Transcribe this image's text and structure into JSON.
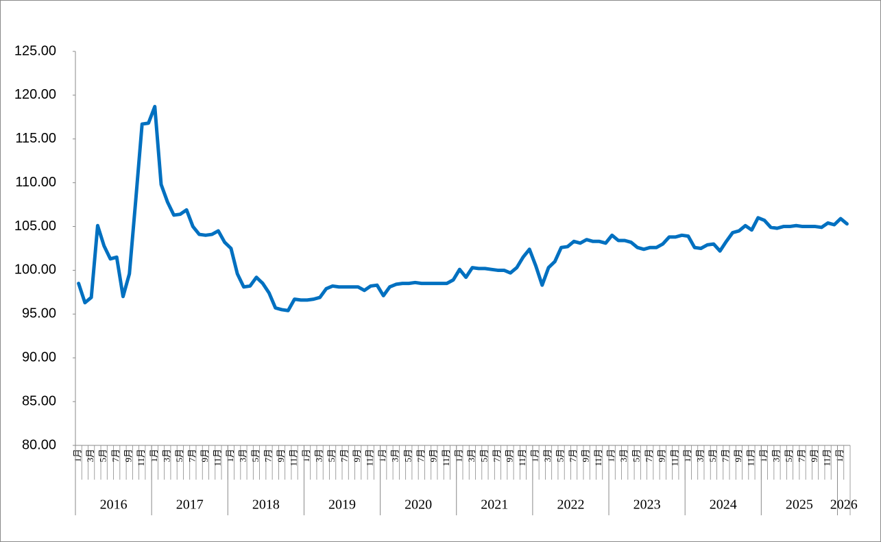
{
  "chart_data": {
    "type": "line",
    "categories": [
      "1月",
      null,
      "3月",
      null,
      "5月",
      null,
      "7月",
      null,
      "9月",
      null,
      "11月",
      null,
      "1月",
      null,
      "3月",
      null,
      "5月",
      null,
      "7月",
      null,
      "9月",
      null,
      "11月",
      null,
      "1月",
      null,
      "3月",
      null,
      "5月",
      null,
      "7月",
      null,
      "9月",
      null,
      "11月",
      null,
      "1月",
      null,
      "3月",
      null,
      "5月",
      null,
      "7月",
      null,
      "9月",
      null,
      "11月",
      null,
      "1月",
      null,
      "3月",
      null,
      "5月",
      null,
      "7月",
      null,
      "9月",
      null,
      "11月",
      null,
      "1月",
      null,
      "3月",
      null,
      "5月",
      null,
      "7月",
      null,
      "9月",
      null,
      "11月",
      null,
      "1月",
      null,
      "3月",
      null,
      "5月",
      null,
      "7月",
      null,
      "9月",
      null,
      "11月",
      null,
      "1月",
      null,
      "3月",
      null,
      "5月",
      null,
      "7月",
      null,
      "9月",
      null,
      "11月",
      null,
      "1月",
      null,
      "3月",
      null,
      "5月",
      null,
      "7月",
      null,
      "9月",
      null,
      "11月",
      null,
      "1月",
      null,
      "3月",
      null,
      "5月",
      null,
      "7月",
      null,
      "9月",
      null,
      "11月",
      null,
      "1月",
      null
    ],
    "years": [
      "2016",
      "2017",
      "2018",
      "2019",
      "2020",
      "2021",
      "2022",
      "2023",
      "2024",
      "2025",
      "2026"
    ],
    "series": [
      {
        "color": "#0070c0",
        "values": [
          98.5,
          96.3,
          96.9,
          105.1,
          102.8,
          101.3,
          101.5,
          97.0,
          99.6,
          108.0,
          116.7,
          116.8,
          118.7,
          109.8,
          107.8,
          106.3,
          106.4,
          106.9,
          105.0,
          104.1,
          104.0,
          104.1,
          104.5,
          103.2,
          102.5,
          99.6,
          98.1,
          98.2,
          99.2,
          98.5,
          97.4,
          95.7,
          95.5,
          95.4,
          96.7,
          96.6,
          96.6,
          96.7,
          96.9,
          97.9,
          98.2,
          98.1,
          98.1,
          98.1,
          98.1,
          97.7,
          98.2,
          98.3,
          97.1,
          98.1,
          98.4,
          98.5,
          98.5,
          98.6,
          98.5,
          98.5,
          98.5,
          98.5,
          98.5,
          98.9,
          100.1,
          99.2,
          100.3,
          100.2,
          100.2,
          100.1,
          100.0,
          100.0,
          99.7,
          100.3,
          101.5,
          102.4,
          100.5,
          98.3,
          100.3,
          101.0,
          102.6,
          102.7,
          103.3,
          103.1,
          103.5,
          103.3,
          103.3,
          103.1,
          104.0,
          103.4,
          103.4,
          103.2,
          102.6,
          102.4,
          102.6,
          102.6,
          103.0,
          103.8,
          103.8,
          104.0,
          103.9,
          102.6,
          102.5,
          102.9,
          103.0,
          102.2,
          103.3,
          104.3,
          104.5,
          105.1,
          104.6,
          106.0,
          105.7,
          104.9,
          104.8,
          105.0,
          105.0,
          105.1,
          105.0,
          105.0,
          105.0,
          104.9,
          105.4,
          105.2,
          105.9,
          105.3
        ]
      }
    ],
    "ylim": [
      80,
      125
    ],
    "yticks": [
      {
        "value": 80,
        "label": "80.00"
      },
      {
        "value": 85,
        "label": "85.00"
      },
      {
        "value": 90,
        "label": "90.00"
      },
      {
        "value": 95,
        "label": "95.00"
      },
      {
        "value": 100,
        "label": "100.00"
      },
      {
        "value": 105,
        "label": "105.00"
      },
      {
        "value": 110,
        "label": "110.00"
      },
      {
        "value": 115,
        "label": "115.00"
      },
      {
        "value": 120,
        "label": "120.00"
      },
      {
        "value": 125,
        "label": "125.00"
      }
    ],
    "grid": false
  }
}
